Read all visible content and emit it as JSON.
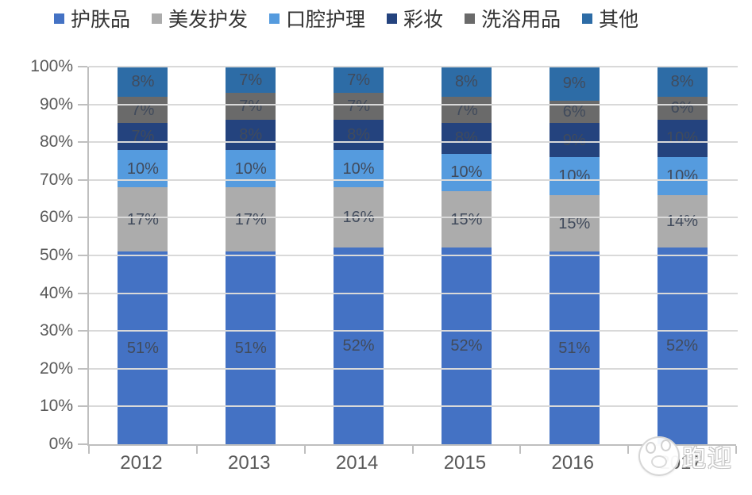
{
  "chart_data": {
    "type": "bar",
    "variant": "stacked-100-percent-column",
    "title": "",
    "categories": [
      "2012",
      "2013",
      "2014",
      "2015",
      "2016",
      "2017"
    ],
    "series": [
      {
        "name": "护肤品",
        "color": "#4472C4",
        "values": [
          51,
          51,
          52,
          52,
          51,
          52
        ]
      },
      {
        "name": "美发护发",
        "color": "#ACACAC",
        "values": [
          17,
          17,
          16,
          15,
          15,
          14
        ]
      },
      {
        "name": "口腔护理",
        "color": "#559BDE",
        "values": [
          10,
          10,
          10,
          10,
          10,
          10
        ]
      },
      {
        "name": "彩妆",
        "color": "#24437E",
        "values": [
          7,
          8,
          8,
          8,
          9,
          10
        ]
      },
      {
        "name": "洗浴用品",
        "color": "#6A6A6A",
        "values": [
          7,
          7,
          7,
          7,
          6,
          6
        ]
      },
      {
        "name": "其他",
        "color": "#2D6CA6",
        "values": [
          8,
          7,
          7,
          8,
          9,
          8
        ]
      }
    ],
    "data_label_suffix": "%",
    "y_axis": {
      "min": 0,
      "max": 100,
      "tick_step": 10,
      "tick_labels": [
        "0%",
        "10%",
        "20%",
        "30%",
        "40%",
        "50%",
        "60%",
        "70%",
        "80%",
        "90%",
        "100%"
      ]
    },
    "legend_position": "top",
    "grid": true
  },
  "watermark": {
    "text": "跑迎"
  },
  "style_colors": {
    "axis": "#BFBFBF",
    "gridline": "#D9D9D9",
    "axis_label": "#595959",
    "legend_text": "#333333",
    "data_label": "#414b5c"
  }
}
